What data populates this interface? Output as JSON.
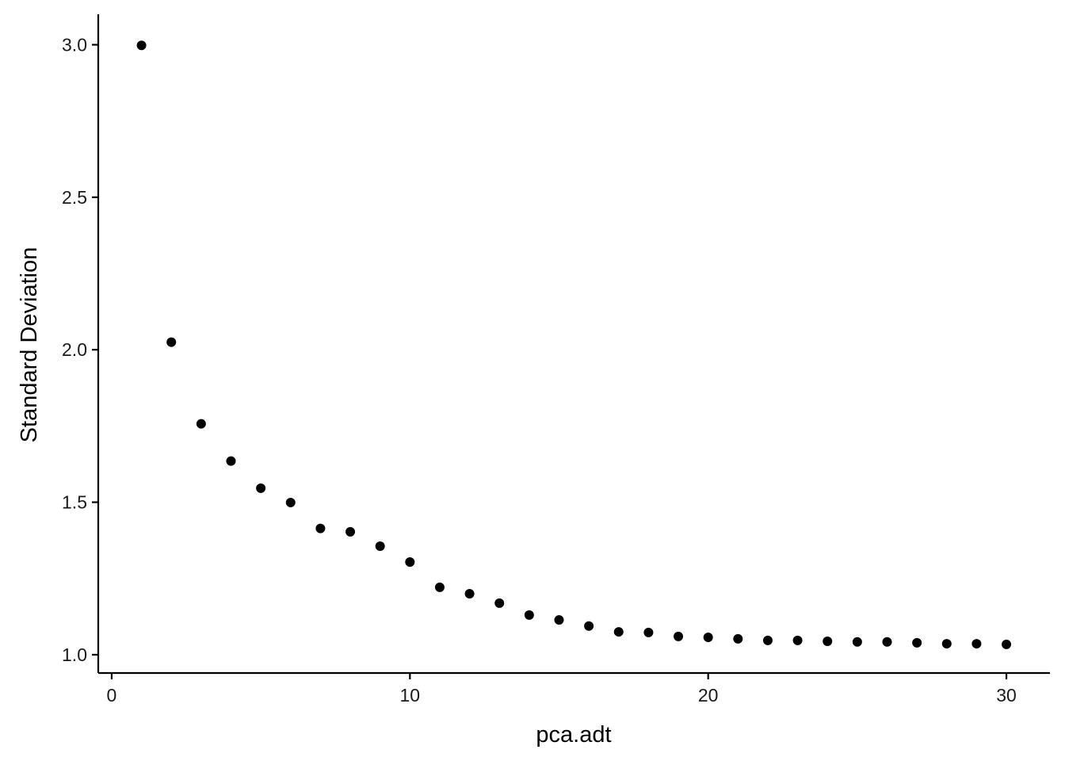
{
  "chart_data": {
    "type": "scatter",
    "title": "",
    "xlabel": "pca.adt",
    "ylabel": "Standard Deviation",
    "xlim": [
      -0.45,
      31.46
    ],
    "ylim": [
      0.94,
      3.1
    ],
    "xticks": [
      0,
      10,
      20,
      30
    ],
    "xtick_labels": [
      "0",
      "10",
      "20",
      "30"
    ],
    "yticks": [
      1.0,
      1.5,
      2.0,
      2.5,
      3.0
    ],
    "ytick_labels": [
      "1.0",
      "1.5",
      "2.0",
      "2.5",
      "3.0"
    ],
    "grid": false,
    "point_color": "#000000",
    "x": [
      1,
      2,
      3,
      4,
      5,
      6,
      7,
      8,
      9,
      10,
      11,
      12,
      13,
      14,
      15,
      16,
      17,
      18,
      19,
      20,
      21,
      22,
      23,
      24,
      25,
      26,
      27,
      28,
      29,
      30
    ],
    "y": [
      2.998,
      2.025,
      1.757,
      1.635,
      1.546,
      1.499,
      1.414,
      1.403,
      1.356,
      1.304,
      1.221,
      1.2,
      1.169,
      1.13,
      1.114,
      1.094,
      1.075,
      1.073,
      1.06,
      1.057,
      1.052,
      1.047,
      1.047,
      1.044,
      1.042,
      1.042,
      1.039,
      1.036,
      1.036,
      1.034
    ]
  }
}
